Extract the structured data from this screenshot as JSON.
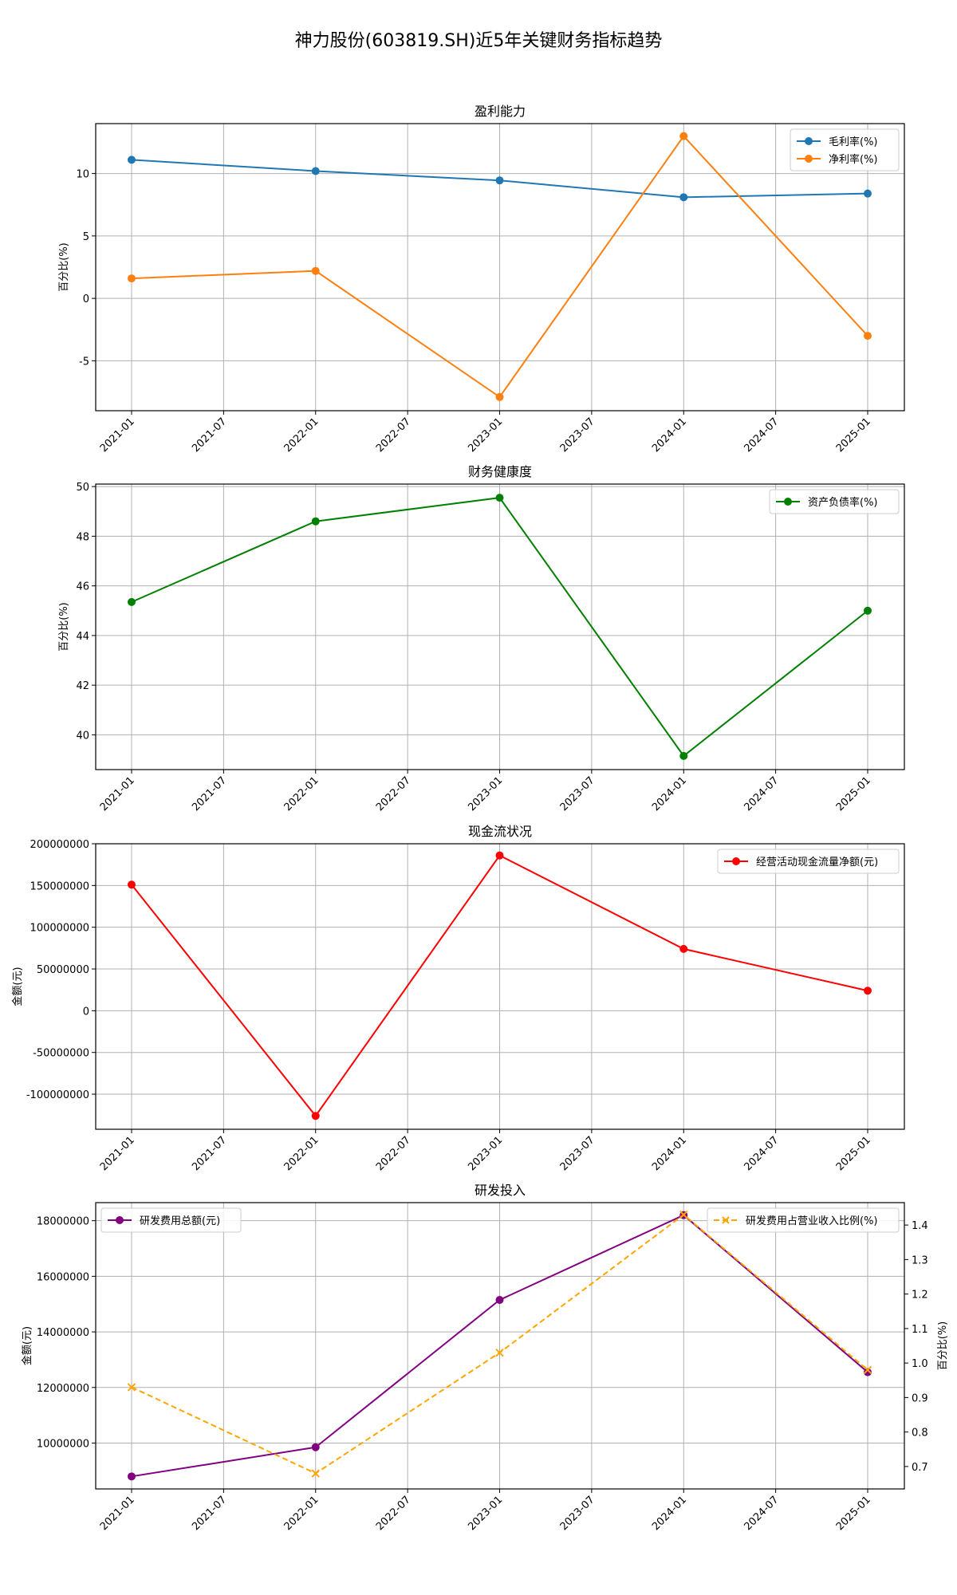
{
  "suptitle": "神力股份(603819.SH)近5年关键财务指标趋势",
  "chart_data": [
    {
      "type": "line",
      "title": "盈利能力",
      "ylabel": "百分比(%)",
      "x": [
        "2021-01",
        "2022-01",
        "2023-01",
        "2024-01",
        "2025-01"
      ],
      "x_ticks": [
        "2021-01",
        "2021-07",
        "2022-01",
        "2022-07",
        "2023-01",
        "2023-07",
        "2024-01",
        "2024-07",
        "2025-01"
      ],
      "ylim": [
        -9,
        14
      ],
      "y_ticks": [
        -5,
        0,
        5,
        10
      ],
      "legend_position": "top-right",
      "series": [
        {
          "name": "毛利率(%)",
          "color": "#1f77b4",
          "marker": "o",
          "dash": "solid",
          "values": [
            11.1,
            10.2,
            9.45,
            8.1,
            8.4
          ]
        },
        {
          "name": "净利率(%)",
          "color": "#ff7f0e",
          "marker": "o",
          "dash": "solid",
          "values": [
            1.6,
            2.2,
            -7.9,
            13.0,
            -3.0
          ]
        }
      ]
    },
    {
      "type": "line",
      "title": "财务健康度",
      "ylabel": "百分比(%)",
      "x": [
        "2021-01",
        "2022-01",
        "2023-01",
        "2024-01",
        "2025-01"
      ],
      "x_ticks": [
        "2021-01",
        "2021-07",
        "2022-01",
        "2022-07",
        "2023-01",
        "2023-07",
        "2024-01",
        "2024-07",
        "2025-01"
      ],
      "ylim": [
        38.6,
        50.1
      ],
      "y_ticks": [
        40,
        42,
        44,
        46,
        48,
        50
      ],
      "legend_position": "top-right",
      "series": [
        {
          "name": "资产负债率(%)",
          "color": "#008000",
          "marker": "o",
          "dash": "solid",
          "values": [
            45.35,
            48.6,
            49.55,
            39.15,
            45.0
          ]
        }
      ]
    },
    {
      "type": "line",
      "title": "现金流状况",
      "ylabel": "金额(元)",
      "x": [
        "2021-01",
        "2022-01",
        "2023-01",
        "2024-01",
        "2025-01"
      ],
      "x_ticks": [
        "2021-01",
        "2021-07",
        "2022-01",
        "2022-07",
        "2023-01",
        "2023-07",
        "2024-01",
        "2024-07",
        "2025-01"
      ],
      "ylim": [
        -142000000,
        200000000
      ],
      "y_ticks": [
        -100000000,
        -50000000,
        0,
        50000000,
        100000000,
        150000000,
        200000000
      ],
      "legend_position": "top-right",
      "series": [
        {
          "name": "经营活动现金流量净额(元)",
          "color": "#ff0000",
          "marker": "o",
          "dash": "solid",
          "values": [
            151000000,
            -126000000,
            186000000,
            74000000,
            24000000
          ]
        }
      ]
    },
    {
      "type": "line",
      "title": "研发投入",
      "ylabel": "金额(元)",
      "y2label": "百分比(%)",
      "x": [
        "2021-01",
        "2022-01",
        "2023-01",
        "2024-01",
        "2025-01"
      ],
      "x_ticks": [
        "2021-01",
        "2021-07",
        "2022-01",
        "2022-07",
        "2023-01",
        "2023-07",
        "2024-01",
        "2024-07",
        "2025-01"
      ],
      "ylim": [
        8350000,
        18650000
      ],
      "y_ticks": [
        10000000,
        12000000,
        14000000,
        16000000,
        18000000
      ],
      "y2lim": [
        0.635,
        1.465
      ],
      "y2_ticks": [
        0.7,
        0.8,
        0.9,
        1.0,
        1.1,
        1.2,
        1.3,
        1.4
      ],
      "series": [
        {
          "name": "研发费用总额(元)",
          "axis": "left",
          "color": "#800080",
          "marker": "o",
          "dash": "solid",
          "legend_position": "top-left",
          "values": [
            8800000,
            9850000,
            15150000,
            18200000,
            12550000
          ]
        },
        {
          "name": "研发费用占营业收入比例(%)",
          "axis": "right",
          "color": "#ffa500",
          "marker": "x",
          "dash": "dashed",
          "legend_position": "top-right",
          "values": [
            0.93,
            0.68,
            1.03,
            1.43,
            0.98
          ]
        }
      ]
    }
  ]
}
